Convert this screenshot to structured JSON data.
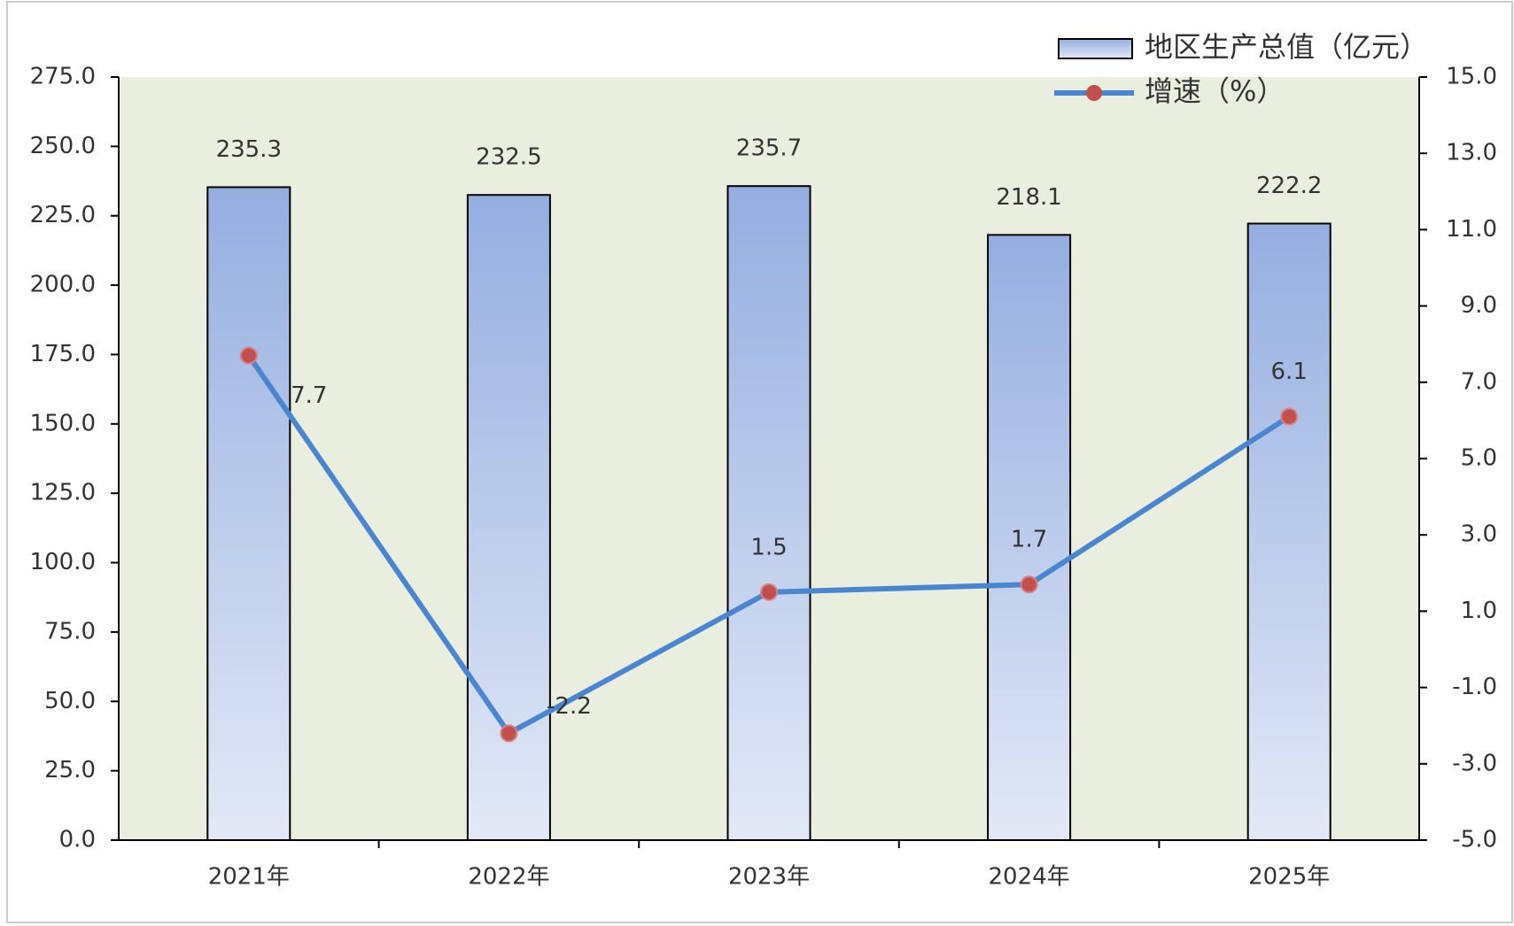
{
  "chart_data": {
    "type": "bar_line",
    "categories": [
      "2021年",
      "2022年",
      "2023年",
      "2024年",
      "2025年"
    ],
    "series": [
      {
        "name": "地区生产总值（亿元）",
        "type": "bar",
        "color": "#94aee0",
        "values": [
          235.3,
          232.5,
          235.7,
          218.1,
          222.2
        ]
      },
      {
        "name": "增速（%）",
        "type": "line",
        "axis": "y2",
        "color": "#4a86d0",
        "marker_color": "#c0504d",
        "values": [
          7.7,
          -2.2,
          1.5,
          1.7,
          6.1
        ]
      }
    ],
    "ylim": [
      0,
      275
    ],
    "yticks": [
      {
        "value": 0,
        "label": "0.0"
      },
      {
        "value": 25,
        "label": "25.0"
      },
      {
        "value": 50,
        "label": "50.0"
      },
      {
        "value": 75,
        "label": "75.0"
      },
      {
        "value": 100,
        "label": "100.0"
      },
      {
        "value": 125,
        "label": "125.0"
      },
      {
        "value": 150,
        "label": "150.0"
      },
      {
        "value": 175,
        "label": "175.0"
      },
      {
        "value": 200,
        "label": "200.0"
      },
      {
        "value": 225,
        "label": "225.0"
      },
      {
        "value": 250,
        "label": "250.0"
      },
      {
        "value": 275,
        "label": "275.0"
      }
    ],
    "y2lim": [
      -5,
      15
    ],
    "y2ticks": [
      {
        "value": -5,
        "label": "-5.0"
      },
      {
        "value": -3,
        "label": "-3.0"
      },
      {
        "value": -1,
        "label": "-1.0"
      },
      {
        "value": 1,
        "label": "1.0"
      },
      {
        "value": 3,
        "label": "3.0"
      },
      {
        "value": 5,
        "label": "5.0"
      },
      {
        "value": 7,
        "label": "7.0"
      },
      {
        "value": 9,
        "label": "9.0"
      },
      {
        "value": 11,
        "label": "11.0"
      },
      {
        "value": 13,
        "label": "13.0"
      },
      {
        "value": 15,
        "label": "15.0"
      }
    ],
    "grid": false,
    "legend": "top-right"
  }
}
